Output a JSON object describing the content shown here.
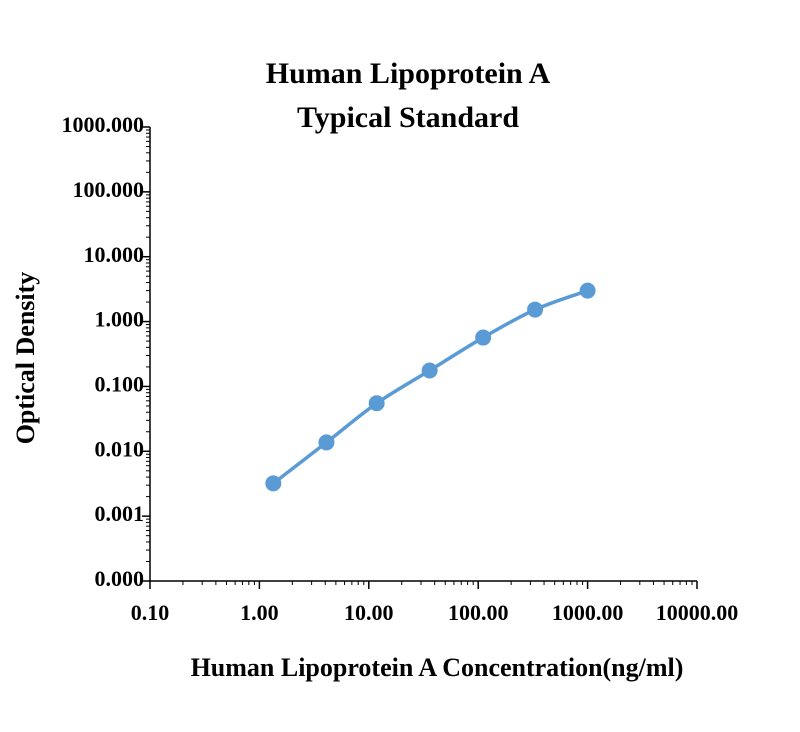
{
  "chart_data": {
    "type": "line",
    "title": [
      "Human Lipoprotein A",
      "Typical Standard"
    ],
    "x_label": "Human Lipoprotein A Concentration(ng/ml)",
    "y_label": "Optical Density",
    "x_scale": "log",
    "y_scale": "log",
    "xlim": [
      0.1,
      10000
    ],
    "ylim": [
      0.0001,
      1000
    ],
    "xticks": [
      {
        "value": 0.1,
        "label": "0.10"
      },
      {
        "value": 1,
        "label": "1.00"
      },
      {
        "value": 10,
        "label": "10.00"
      },
      {
        "value": 100,
        "label": "100.00"
      },
      {
        "value": 1000,
        "label": "1000.00"
      },
      {
        "value": 10000,
        "label": "10000.00"
      }
    ],
    "yticks": [
      {
        "value": 0.0001,
        "label": "0.000"
      },
      {
        "value": 0.001,
        "label": "0.001"
      },
      {
        "value": 0.01,
        "label": "0.010"
      },
      {
        "value": 0.1,
        "label": "0.100"
      },
      {
        "value": 1,
        "label": "1.000"
      },
      {
        "value": 10,
        "label": "10.000"
      },
      {
        "value": 100,
        "label": "100.000"
      },
      {
        "value": 1000,
        "label": "1000.000"
      }
    ],
    "series": [
      {
        "color": "#5b9bd5",
        "x": [
          1.34,
          4.1,
          11.8,
          36,
          111,
          331,
          1000
        ],
        "values": [
          0.0032,
          0.0137,
          0.055,
          0.176,
          0.567,
          1.53,
          3.0
        ]
      }
    ]
  }
}
